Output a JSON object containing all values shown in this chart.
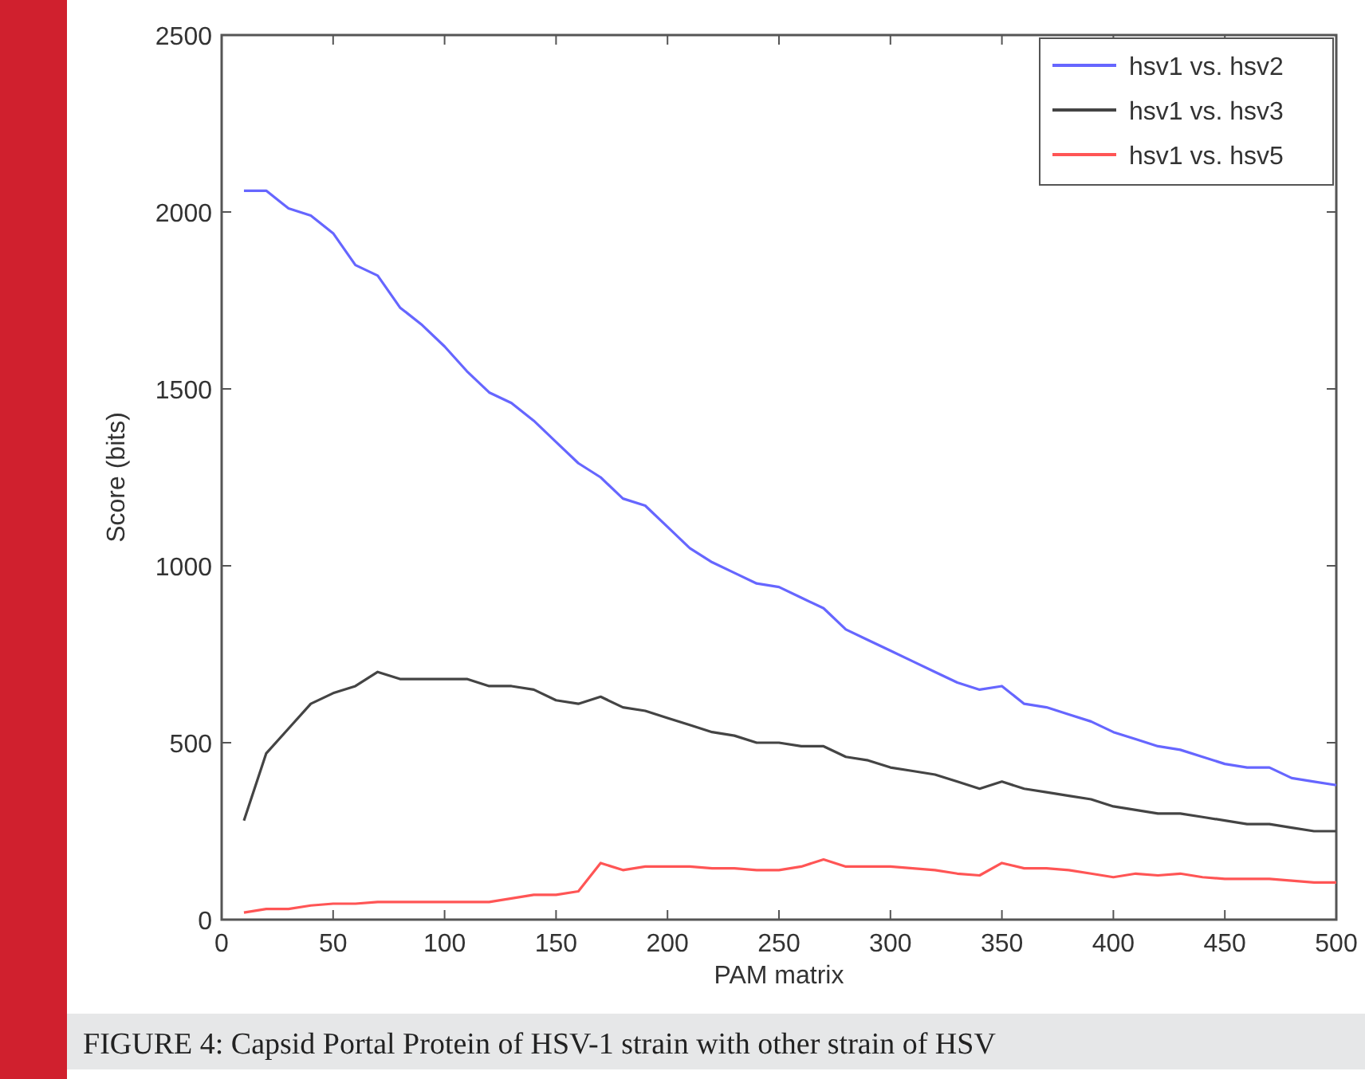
{
  "chart_data": {
    "type": "line",
    "xlabel": "PAM matrix",
    "ylabel": "Score (bits)",
    "x": [
      10,
      20,
      30,
      40,
      50,
      60,
      70,
      80,
      90,
      100,
      110,
      120,
      130,
      140,
      150,
      160,
      170,
      180,
      190,
      200,
      210,
      220,
      230,
      240,
      250,
      260,
      270,
      280,
      290,
      300,
      310,
      320,
      330,
      340,
      350,
      360,
      370,
      380,
      390,
      400,
      410,
      420,
      430,
      440,
      450,
      460,
      470,
      480,
      490,
      500
    ],
    "series": [
      {
        "name": "hsv1 vs. hsv2",
        "color": "#6666ff",
        "values": [
          2060,
          2060,
          2010,
          1990,
          1940,
          1850,
          1820,
          1730,
          1680,
          1620,
          1550,
          1490,
          1460,
          1410,
          1350,
          1290,
          1250,
          1190,
          1170,
          1110,
          1050,
          1010,
          980,
          950,
          940,
          910,
          880,
          820,
          790,
          760,
          730,
          700,
          670,
          650,
          660,
          610,
          600,
          580,
          560,
          530,
          510,
          490,
          480,
          460,
          440,
          430,
          430,
          400,
          390,
          380
        ]
      },
      {
        "name": "hsv1 vs. hsv3",
        "color": "#444444",
        "values": [
          280,
          470,
          540,
          610,
          640,
          660,
          700,
          680,
          680,
          680,
          680,
          660,
          660,
          650,
          620,
          610,
          630,
          600,
          590,
          570,
          550,
          530,
          520,
          500,
          500,
          490,
          490,
          460,
          450,
          430,
          420,
          410,
          390,
          370,
          390,
          370,
          360,
          350,
          340,
          320,
          310,
          300,
          300,
          290,
          280,
          270,
          270,
          260,
          250,
          250
        ]
      },
      {
        "name": "hsv1 vs. hsv5",
        "color": "#ff5555",
        "values": [
          20,
          30,
          30,
          40,
          45,
          45,
          50,
          50,
          50,
          50,
          50,
          50,
          60,
          70,
          70,
          80,
          160,
          140,
          150,
          150,
          150,
          145,
          145,
          140,
          140,
          150,
          170,
          150,
          150,
          150,
          145,
          140,
          130,
          125,
          160,
          145,
          145,
          140,
          130,
          120,
          130,
          125,
          130,
          120,
          115,
          115,
          115,
          110,
          105,
          105
        ]
      }
    ],
    "xlim": [
      0,
      500
    ],
    "xticks": [
      0,
      50,
      100,
      150,
      200,
      250,
      300,
      350,
      400,
      450,
      500
    ],
    "ylim": [
      0,
      2500
    ],
    "yticks": [
      0,
      500,
      1000,
      1500,
      2000,
      2500
    ],
    "legend": "top right",
    "grid": false,
    "marker": "none",
    "line_style": "solid",
    "annotations": [
      "FIGURE 4: Capsid Portal Protein of HSV-1 strain with other strain of HSV"
    ]
  }
}
